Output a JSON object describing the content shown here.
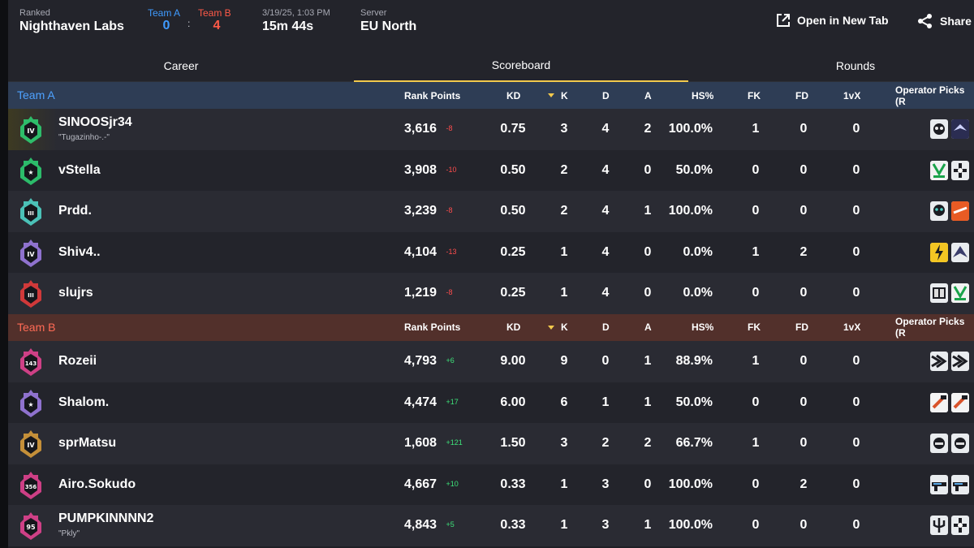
{
  "header": {
    "mode_label": "Ranked",
    "map_name": "Nighthaven Labs",
    "team_a_label": "Team A",
    "team_b_label": "Team B",
    "team_a_score": "0",
    "team_b_score": "4",
    "score_separator": ":",
    "datetime": "3/19/25, 1:03 PM",
    "duration": "15m 44s",
    "server_label": "Server",
    "server_value": "EU North",
    "open_new_tab_label": "Open in New Tab",
    "share_label": "Share"
  },
  "tabs": [
    {
      "label": "Career"
    },
    {
      "label": "Scoreboard",
      "active": true
    },
    {
      "label": "Rounds"
    }
  ],
  "columns": {
    "rank_points": "Rank Points",
    "kd": "KD",
    "k": "K",
    "d": "D",
    "a": "A",
    "hs": "HS%",
    "fk": "FK",
    "fd": "FD",
    "onevx": "1vX",
    "operators": "Operator Picks (R"
  },
  "team_a": {
    "name": "Team A",
    "players": [
      {
        "name": "SINOOSjr34",
        "nick": "\"Tugazinho-.-\"",
        "rp": "3,616",
        "delta": "-8",
        "kd": "0.75",
        "k": "3",
        "d": "4",
        "a": "2",
        "hs": "100.0%",
        "fk": "1",
        "fd": "0",
        "onevx": "0",
        "badge_color": "#2ecc71",
        "badge_text": "IV",
        "ops": [
          "op-mask-icon",
          "op-bird-icon"
        ]
      },
      {
        "name": "vStella",
        "nick": "",
        "rp": "3,908",
        "delta": "-10",
        "kd": "0.50",
        "k": "2",
        "d": "4",
        "a": "0",
        "hs": "50.0%",
        "fk": "0",
        "fd": "0",
        "onevx": "0",
        "badge_color": "#2ecc71",
        "badge_text": "★",
        "ops": [
          "op-green-emblem-icon",
          "op-cross-icon"
        ]
      },
      {
        "name": "Prdd.",
        "nick": "",
        "rp": "3,239",
        "delta": "-8",
        "kd": "0.50",
        "k": "2",
        "d": "4",
        "a": "1",
        "hs": "100.0%",
        "fk": "0",
        "fd": "0",
        "onevx": "0",
        "badge_color": "#4fd1c5",
        "badge_text": "III",
        "ops": [
          "op-skull-icon",
          "op-orange-icon"
        ]
      },
      {
        "name": "Shiv4..",
        "nick": "",
        "rp": "4,104",
        "delta": "-13",
        "kd": "0.25",
        "k": "1",
        "d": "4",
        "a": "0",
        "hs": "0.0%",
        "fk": "1",
        "fd": "2",
        "onevx": "0",
        "badge_color": "#9b7be0",
        "badge_text": "IV",
        "ops": [
          "op-yellow-bolt-icon",
          "op-wing-icon"
        ]
      },
      {
        "name": "slujrs",
        "nick": "",
        "rp": "1,219",
        "delta": "-8",
        "kd": "0.25",
        "k": "1",
        "d": "4",
        "a": "0",
        "hs": "0.0%",
        "fk": "0",
        "fd": "0",
        "onevx": "0",
        "badge_color": "#e23b3b",
        "badge_text": "III",
        "ops": [
          "op-book-icon",
          "op-green-emblem-icon"
        ]
      }
    ]
  },
  "team_b": {
    "name": "Team B",
    "players": [
      {
        "name": "Rozeii",
        "nick": "",
        "rp": "4,793",
        "delta": "+6",
        "kd": "9.00",
        "k": "9",
        "d": "0",
        "a": "1",
        "hs": "88.9%",
        "fk": "1",
        "fd": "0",
        "onevx": "0",
        "badge_color": "#e0438f",
        "badge_text": "143",
        "ops": [
          "op-claw-icon",
          "op-claw-icon"
        ]
      },
      {
        "name": "Shalom.",
        "nick": "",
        "rp": "4,474",
        "delta": "+17",
        "kd": "6.00",
        "k": "6",
        "d": "1",
        "a": "1",
        "hs": "50.0%",
        "fk": "0",
        "fd": "0",
        "onevx": "0",
        "badge_color": "#9b7be0",
        "badge_text": "★",
        "ops": [
          "op-hammer-icon",
          "op-hammer-icon"
        ]
      },
      {
        "name": "sprMatsu",
        "nick": "",
        "rp": "1,608",
        "delta": "+121",
        "kd": "1.50",
        "k": "3",
        "d": "2",
        "a": "2",
        "hs": "66.7%",
        "fk": "1",
        "fd": "0",
        "onevx": "0",
        "badge_color": "#d59a3a",
        "badge_text": "IV",
        "ops": [
          "op-helmet-icon",
          "op-helmet-icon"
        ]
      },
      {
        "name": "Airo.Sokudo",
        "nick": "",
        "rp": "4,667",
        "delta": "+10",
        "kd": "0.33",
        "k": "1",
        "d": "3",
        "a": "0",
        "hs": "100.0%",
        "fk": "0",
        "fd": "2",
        "onevx": "0",
        "badge_color": "#e0438f",
        "badge_text": "356",
        "ops": [
          "op-gun-icon",
          "op-gun-icon"
        ]
      },
      {
        "name": "PUMPKINNNN2",
        "nick": "\"Pkly\"",
        "rp": "4,843",
        "delta": "+5",
        "kd": "0.33",
        "k": "1",
        "d": "3",
        "a": "1",
        "hs": "100.0%",
        "fk": "0",
        "fd": "0",
        "onevx": "0",
        "badge_color": "#e0438f",
        "badge_text": "95",
        "ops": [
          "op-trident-icon",
          "op-cross-icon"
        ]
      }
    ]
  },
  "colors": {
    "accent": "#f2c94c",
    "team_a": "#3f9bff",
    "team_b": "#ff5a48",
    "negative": "#ff4d4d",
    "positive": "#3ee37a"
  }
}
